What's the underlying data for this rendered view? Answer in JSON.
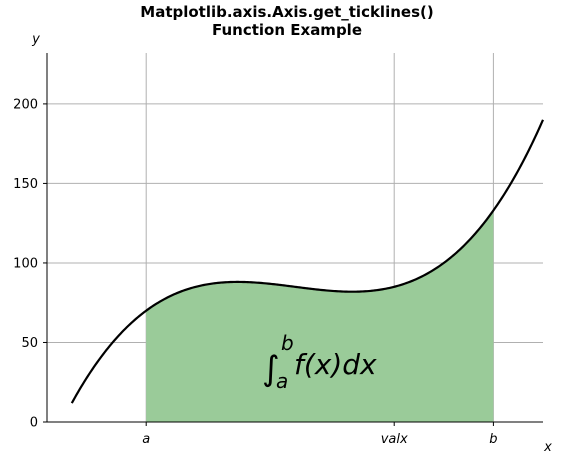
{
  "chart_data": {
    "type": "area",
    "title": [
      "Matplotlib.axis.Axis.get_ticklines()",
      "Function Example"
    ],
    "xlabel": "x",
    "ylabel": "y",
    "xlim": [
      0,
      10
    ],
    "ylim": [
      0,
      232
    ],
    "grid": true,
    "yticks": [
      0,
      50,
      100,
      150,
      200
    ],
    "xticks": [
      {
        "value": 2,
        "label": "a"
      },
      {
        "value": 7,
        "label": "valx"
      },
      {
        "value": 9,
        "label": "b"
      }
    ],
    "curve": {
      "function": "(x - 3) * (x - 5) * (x - 7) + 85",
      "x_range": [
        0.5,
        10
      ],
      "color": "#000000"
    },
    "fill": {
      "x_range": [
        2,
        9
      ],
      "color": "#9acb99"
    },
    "annotation": {
      "integral_lower": "a",
      "integral_upper": "b",
      "integrand": "f(x)dx"
    }
  }
}
